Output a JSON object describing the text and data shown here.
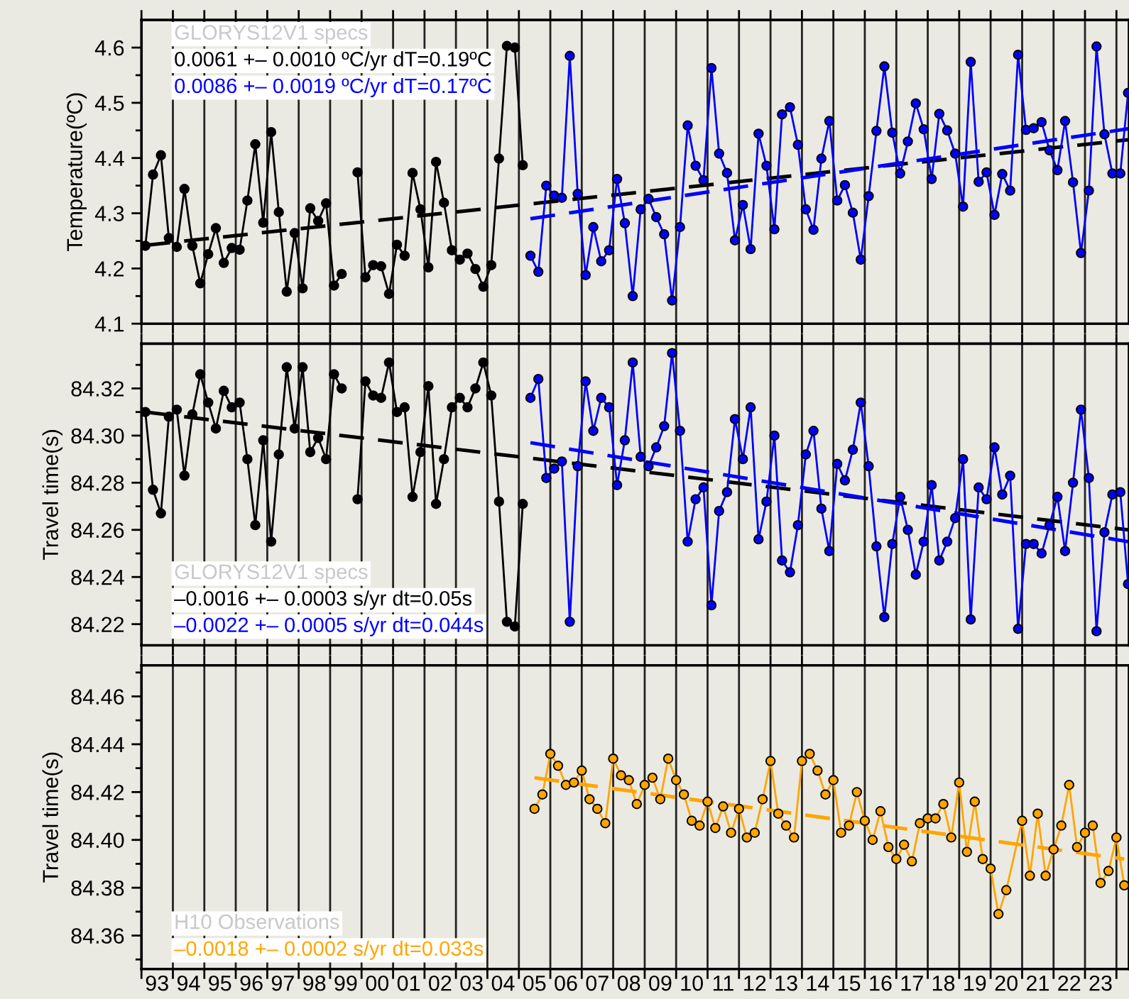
{
  "chart_data": [
    {
      "type": "line",
      "ylabel": "Temperature(ºC)",
      "marker": "circle",
      "line_style": "solid",
      "grid": "x",
      "tick_labels": "y",
      "annotations": [
        "GLORYS12V1 specs",
        "0.0061 +– 0.0010 ºC/yr dT=0.19ºC",
        "0.0086 +– 0.0019 ºC/yr dT=0.17ºC"
      ],
      "xlim": [
        "1993",
        "2024-05-26"
      ],
      "ylim": [
        4.1,
        4.65
      ],
      "xticks": [
        {
          "value": "1993",
          "label": null
        },
        {
          "value": "1994",
          "label": null
        },
        {
          "value": "1995",
          "label": null
        },
        {
          "value": "1996",
          "label": null
        },
        {
          "value": "1997",
          "label": null
        },
        {
          "value": "1998",
          "label": null
        },
        {
          "value": "1999",
          "label": null
        },
        {
          "value": "2000",
          "label": null
        },
        {
          "value": "2001",
          "label": null
        },
        {
          "value": "2002",
          "label": null
        },
        {
          "value": "2003",
          "label": null
        },
        {
          "value": "2004",
          "label": null
        },
        {
          "value": "2005",
          "label": null
        },
        {
          "value": "2006",
          "label": null
        },
        {
          "value": "2007",
          "label": null
        },
        {
          "value": "2008",
          "label": null
        },
        {
          "value": "2009",
          "label": null
        },
        {
          "value": "2010",
          "label": null
        },
        {
          "value": "2011",
          "label": null
        },
        {
          "value": "2012",
          "label": null
        },
        {
          "value": "2013",
          "label": null
        },
        {
          "value": "2014",
          "label": null
        },
        {
          "value": "2015",
          "label": null
        },
        {
          "value": "2016",
          "label": null
        },
        {
          "value": "2017",
          "label": null
        },
        {
          "value": "2018",
          "label": null
        },
        {
          "value": "2019",
          "label": null
        },
        {
          "value": "2020",
          "label": null
        },
        {
          "value": "2021",
          "label": null
        },
        {
          "value": "2022",
          "label": null
        },
        {
          "value": "2023",
          "label": null
        },
        {
          "value": "2024",
          "label": null
        }
      ],
      "yticks": [
        4.1,
        4.2,
        4.3,
        4.4,
        4.5,
        4.6,
        {
          "value": 4.15,
          "label": null
        },
        {
          "value": 4.25,
          "label": null
        },
        {
          "value": 4.35,
          "label": null
        },
        {
          "value": 4.45,
          "label": null
        },
        {
          "value": 4.55,
          "label": null
        }
      ],
      "series": [
        {
          "color": "#000000",
          "x": [
            "1993-02-15",
            "1993-05-15",
            "1993-08-15",
            "1993-11-15",
            "1994-02-15",
            "1994-05-15",
            "1994-08-15",
            "1994-11-15",
            "1995-02-15",
            "1995-05-15",
            "1995-08-15",
            "1995-11-15",
            "1996-02-15",
            "1996-05-15",
            "1996-08-15",
            "1996-11-15",
            "1997-02-15",
            "1997-05-15",
            "1997-08-15",
            "1997-11-15",
            "1998-02-15",
            "1998-05-15",
            "1998-08-15",
            "1998-11-15",
            "1999-02-15",
            "1999-05-15",
            "1999-08-15",
            "1999-11-15",
            "2000-02-15",
            "2000-05-15",
            "2000-08-15",
            "2000-11-15",
            "2001-02-15",
            "2001-05-15",
            "2001-08-15",
            "2001-11-15",
            "2002-02-15",
            "2002-05-15",
            "2002-08-15",
            "2002-11-15",
            "2003-02-15",
            "2003-05-15",
            "2003-08-15",
            "2003-11-15",
            "2004-02-15",
            "2004-05-15",
            "2004-08-15",
            "2004-11-15",
            "2005-02-15"
          ],
          "values": [
            4.241,
            4.37,
            4.405,
            4.255,
            4.239,
            4.344,
            4.241,
            4.173,
            4.226,
            4.273,
            4.21,
            4.237,
            4.234,
            4.323,
            4.425,
            4.283,
            4.447,
            4.302,
            4.158,
            4.264,
            4.164,
            4.309,
            4.286,
            4.318,
            4.169,
            4.19,
            null,
            4.374,
            4.184,
            4.206,
            4.204,
            4.154,
            4.243,
            4.223,
            4.373,
            4.307,
            4.202,
            4.393,
            4.319,
            4.233,
            4.216,
            4.227,
            4.199,
            4.167,
            4.206,
            4.399,
            4.603,
            4.6,
            4.387
          ]
        },
        {
          "color": "#0000ff",
          "x": [
            "2005-05-15",
            "2005-08-15",
            "2005-11-15",
            "2006-02-15",
            "2006-05-15",
            "2006-08-15",
            "2006-11-15",
            "2007-02-15",
            "2007-05-15",
            "2007-08-15",
            "2007-11-15",
            "2008-02-15",
            "2008-05-15",
            "2008-08-15",
            "2008-11-15",
            "2009-02-15",
            "2009-05-15",
            "2009-08-15",
            "2009-11-15",
            "2010-02-15",
            "2010-05-15",
            "2010-08-15",
            "2010-11-15",
            "2011-02-15",
            "2011-05-15",
            "2011-08-15",
            "2011-11-15",
            "2012-02-15",
            "2012-05-15",
            "2012-08-15",
            "2012-11-15",
            "2013-02-15",
            "2013-05-15",
            "2013-08-15",
            "2013-11-15",
            "2014-02-15",
            "2014-05-15",
            "2014-08-15",
            "2014-11-15",
            "2015-02-15",
            "2015-05-15",
            "2015-08-15",
            "2015-11-15",
            "2016-02-15",
            "2016-05-15",
            "2016-08-15",
            "2016-11-15",
            "2017-02-15",
            "2017-05-15",
            "2017-08-15",
            "2017-11-15",
            "2018-02-15",
            "2018-05-15",
            "2018-08-15",
            "2018-11-15",
            "2019-02-15",
            "2019-05-15",
            "2019-08-15",
            "2019-11-15",
            "2020-02-15",
            "2020-05-15",
            "2020-08-15",
            "2020-11-15",
            "2021-02-15",
            "2021-05-15",
            "2021-08-15",
            "2021-11-15",
            "2022-02-15",
            "2022-05-15",
            "2022-08-15",
            "2022-11-15",
            "2023-02-15",
            "2023-05-15",
            "2023-08-15",
            "2023-11-15",
            "2024-02-15",
            "2024-05-15"
          ],
          "values": [
            4.223,
            4.194,
            4.35,
            4.332,
            4.328,
            4.585,
            4.335,
            4.188,
            4.275,
            4.213,
            4.233,
            4.362,
            4.282,
            4.15,
            4.307,
            4.326,
            4.293,
            4.262,
            4.142,
            4.275,
            4.459,
            4.386,
            4.36,
            4.563,
            4.408,
            4.373,
            4.251,
            4.315,
            4.235,
            4.444,
            4.386,
            4.271,
            4.479,
            4.492,
            4.424,
            4.307,
            4.27,
            4.399,
            4.467,
            4.323,
            4.351,
            4.301,
            4.216,
            4.331,
            4.449,
            4.566,
            4.446,
            4.372,
            4.43,
            4.499,
            4.452,
            4.362,
            4.48,
            4.45,
            4.408,
            4.312,
            4.574,
            4.357,
            4.374,
            4.297,
            4.371,
            4.341,
            4.587,
            4.451,
            4.454,
            4.465,
            4.414,
            4.378,
            4.467,
            4.356,
            4.228,
            4.341,
            4.602,
            4.443,
            4.372,
            4.372,
            4.518
          ]
        },
        {
          "color": "#000000",
          "marker": "none",
          "line_style": "dashed",
          "x": [
            "1993-02-15",
            "2024-05-15"
          ],
          "values": [
            4.242,
            4.433
          ]
        },
        {
          "color": "#0000ff",
          "marker": "none",
          "line_style": "dashed",
          "x": [
            "2005-05-15",
            "2024-05-15"
          ],
          "values": [
            4.29,
            4.453
          ]
        }
      ]
    },
    {
      "type": "line",
      "ylabel": "Travel time(s)",
      "marker": "circle",
      "line_style": "solid",
      "grid": "x",
      "tick_labels": "y",
      "annotations": [
        "GLORYS12V1 specs",
        "–0.0016 +– 0.0003 s/yr dt=0.05s",
        "–0.0022 +– 0.0005 s/yr dt=0.044s"
      ],
      "xlim": [
        "1993",
        "2024-05-26"
      ],
      "ylim": [
        84.211,
        84.339
      ],
      "xticks": [
        {
          "value": "1993",
          "label": null
        },
        {
          "value": "1994",
          "label": null
        },
        {
          "value": "1995",
          "label": null
        },
        {
          "value": "1996",
          "label": null
        },
        {
          "value": "1997",
          "label": null
        },
        {
          "value": "1998",
          "label": null
        },
        {
          "value": "1999",
          "label": null
        },
        {
          "value": "2000",
          "label": null
        },
        {
          "value": "2001",
          "label": null
        },
        {
          "value": "2002",
          "label": null
        },
        {
          "value": "2003",
          "label": null
        },
        {
          "value": "2004",
          "label": null
        },
        {
          "value": "2005",
          "label": null
        },
        {
          "value": "2006",
          "label": null
        },
        {
          "value": "2007",
          "label": null
        },
        {
          "value": "2008",
          "label": null
        },
        {
          "value": "2009",
          "label": null
        },
        {
          "value": "2010",
          "label": null
        },
        {
          "value": "2011",
          "label": null
        },
        {
          "value": "2012",
          "label": null
        },
        {
          "value": "2013",
          "label": null
        },
        {
          "value": "2014",
          "label": null
        },
        {
          "value": "2015",
          "label": null
        },
        {
          "value": "2016",
          "label": null
        },
        {
          "value": "2017",
          "label": null
        },
        {
          "value": "2018",
          "label": null
        },
        {
          "value": "2019",
          "label": null
        },
        {
          "value": "2020",
          "label": null
        },
        {
          "value": "2021",
          "label": null
        },
        {
          "value": "2022",
          "label": null
        },
        {
          "value": "2023",
          "label": null
        },
        {
          "value": "2024",
          "label": null
        }
      ],
      "yticks": [
        84.22,
        84.24,
        84.26,
        84.28,
        {
          "value": 84.3,
          "label": "84.30"
        },
        84.32,
        {
          "value": 84.23,
          "label": null
        },
        {
          "value": 84.25,
          "label": null
        },
        {
          "value": 84.27,
          "label": null
        },
        {
          "value": 84.29,
          "label": null
        },
        {
          "value": 84.31,
          "label": null
        },
        {
          "value": 84.33,
          "label": null
        }
      ],
      "series": [
        {
          "color": "#000000",
          "x": [
            "1993-02-15",
            "1993-05-15",
            "1993-08-15",
            "1993-11-15",
            "1994-02-15",
            "1994-05-15",
            "1994-08-15",
            "1994-11-15",
            "1995-02-15",
            "1995-05-15",
            "1995-08-15",
            "1995-11-15",
            "1996-02-15",
            "1996-05-15",
            "1996-08-15",
            "1996-11-15",
            "1997-02-15",
            "1997-05-15",
            "1997-08-15",
            "1997-11-15",
            "1998-02-15",
            "1998-05-15",
            "1998-08-15",
            "1998-11-15",
            "1999-02-15",
            "1999-05-15",
            "1999-08-15",
            "1999-11-15",
            "2000-02-15",
            "2000-05-15",
            "2000-08-15",
            "2000-11-15",
            "2001-02-15",
            "2001-05-15",
            "2001-08-15",
            "2001-11-15",
            "2002-02-15",
            "2002-05-15",
            "2002-08-15",
            "2002-11-15",
            "2003-02-15",
            "2003-05-15",
            "2003-08-15",
            "2003-11-15",
            "2004-02-15",
            "2004-05-15",
            "2004-08-15",
            "2004-11-15",
            "2005-02-15"
          ],
          "values": [
            84.31,
            84.277,
            84.267,
            84.308,
            84.311,
            84.283,
            84.309,
            84.326,
            84.314,
            84.303,
            84.319,
            84.312,
            84.314,
            84.29,
            84.262,
            84.298,
            84.255,
            84.292,
            84.329,
            84.303,
            84.329,
            84.293,
            84.299,
            84.29,
            84.326,
            84.32,
            null,
            84.273,
            84.323,
            84.317,
            84.316,
            84.331,
            84.31,
            84.312,
            84.274,
            84.293,
            84.321,
            84.271,
            84.29,
            84.312,
            84.316,
            84.312,
            84.32,
            84.331,
            84.317,
            84.272,
            84.221,
            84.219,
            84.271
          ]
        },
        {
          "color": "#0000ff",
          "x": [
            "2005-05-15",
            "2005-08-15",
            "2005-11-15",
            "2006-02-15",
            "2006-05-15",
            "2006-08-15",
            "2006-11-15",
            "2007-02-15",
            "2007-05-15",
            "2007-08-15",
            "2007-11-15",
            "2008-02-15",
            "2008-05-15",
            "2008-08-15",
            "2008-11-15",
            "2009-02-15",
            "2009-05-15",
            "2009-08-15",
            "2009-11-15",
            "2010-02-15",
            "2010-05-15",
            "2010-08-15",
            "2010-11-15",
            "2011-02-15",
            "2011-05-15",
            "2011-08-15",
            "2011-11-15",
            "2012-02-15",
            "2012-05-15",
            "2012-08-15",
            "2012-11-15",
            "2013-02-15",
            "2013-05-15",
            "2013-08-15",
            "2013-11-15",
            "2014-02-15",
            "2014-05-15",
            "2014-08-15",
            "2014-11-15",
            "2015-02-15",
            "2015-05-15",
            "2015-08-15",
            "2015-11-15",
            "2016-02-15",
            "2016-05-15",
            "2016-08-15",
            "2016-11-15",
            "2017-02-15",
            "2017-05-15",
            "2017-08-15",
            "2017-11-15",
            "2018-02-15",
            "2018-05-15",
            "2018-08-15",
            "2018-11-15",
            "2019-02-15",
            "2019-05-15",
            "2019-08-15",
            "2019-11-15",
            "2020-02-15",
            "2020-05-15",
            "2020-08-15",
            "2020-11-15",
            "2021-02-15",
            "2021-05-15",
            "2021-08-15",
            "2021-11-15",
            "2022-02-15",
            "2022-05-15",
            "2022-08-15",
            "2022-11-15",
            "2023-02-15",
            "2023-05-15",
            "2023-08-15",
            "2023-11-15",
            "2024-02-15",
            "2024-05-15"
          ],
          "values": [
            84.316,
            84.324,
            84.282,
            84.286,
            84.289,
            84.221,
            84.287,
            84.323,
            84.302,
            84.316,
            84.312,
            84.279,
            84.298,
            84.331,
            84.291,
            84.287,
            84.295,
            84.304,
            84.335,
            84.302,
            84.255,
            84.273,
            84.278,
            84.228,
            84.268,
            84.276,
            84.307,
            84.29,
            84.312,
            84.256,
            84.272,
            84.3,
            84.247,
            84.242,
            84.262,
            84.292,
            84.302,
            84.269,
            84.251,
            84.288,
            84.281,
            84.294,
            84.314,
            84.287,
            84.253,
            84.223,
            84.254,
            84.274,
            84.26,
            84.241,
            84.255,
            84.279,
            84.247,
            84.255,
            84.265,
            84.29,
            84.222,
            84.278,
            84.273,
            84.295,
            84.275,
            84.283,
            84.218,
            84.254,
            84.254,
            84.25,
            84.262,
            84.274,
            84.251,
            84.28,
            84.311,
            84.282,
            84.217,
            84.259,
            84.275,
            84.276,
            84.237
          ]
        },
        {
          "color": "#000000",
          "marker": "none",
          "line_style": "dashed",
          "x": [
            "1993-02-15",
            "2024-05-15"
          ],
          "values": [
            84.31,
            84.26
          ]
        },
        {
          "color": "#0000ff",
          "marker": "none",
          "line_style": "dashed",
          "x": [
            "2005-05-15",
            "2024-05-15"
          ],
          "values": [
            84.297,
            84.255
          ]
        }
      ]
    },
    {
      "type": "line",
      "ylabel": "Travel time(s)",
      "marker": "circle",
      "line_style": "solid",
      "grid": "x",
      "annotations": [
        "H10 Observations",
        "–0.0018 +– 0.0002 s/yr dt=0.033s"
      ],
      "xlim": [
        "1993",
        "2024-05-26"
      ],
      "ylim": [
        84.346,
        84.473
      ],
      "xticks": [
        {
          "value": "1993",
          "label": null
        },
        {
          "value": "1994",
          "label": null
        },
        {
          "value": "1995",
          "label": null
        },
        {
          "value": "1996",
          "label": null
        },
        {
          "value": "1997",
          "label": null
        },
        {
          "value": "1998",
          "label": null
        },
        {
          "value": "1999",
          "label": null
        },
        {
          "value": "2000",
          "label": null
        },
        {
          "value": "2001",
          "label": null
        },
        {
          "value": "2002",
          "label": null
        },
        {
          "value": "2003",
          "label": null
        },
        {
          "value": "2004",
          "label": null
        },
        {
          "value": "2005",
          "label": null
        },
        {
          "value": "2006",
          "label": null
        },
        {
          "value": "2007",
          "label": null
        },
        {
          "value": "2008",
          "label": null
        },
        {
          "value": "2009",
          "label": null
        },
        {
          "value": "2010",
          "label": null
        },
        {
          "value": "2011",
          "label": null
        },
        {
          "value": "2012",
          "label": null
        },
        {
          "value": "2013",
          "label": null
        },
        {
          "value": "2014",
          "label": null
        },
        {
          "value": "2015",
          "label": null
        },
        {
          "value": "2016",
          "label": null
        },
        {
          "value": "2017",
          "label": null
        },
        {
          "value": "2018",
          "label": null
        },
        {
          "value": "2019",
          "label": null
        },
        {
          "value": "2020",
          "label": null
        },
        {
          "value": "2021",
          "label": null
        },
        {
          "value": "2022",
          "label": null
        },
        {
          "value": "2023",
          "label": null
        },
        {
          "value": "2024",
          "label": null
        },
        {
          "value": "1993-07-01",
          "label": "93"
        },
        {
          "value": "1994-07-01",
          "label": "94"
        },
        {
          "value": "1995-07-01",
          "label": "95"
        },
        {
          "value": "1996-07-01",
          "label": "96"
        },
        {
          "value": "1997-07-01",
          "label": "97"
        },
        {
          "value": "1998-07-01",
          "label": "98"
        },
        {
          "value": "1999-07-01",
          "label": "99"
        },
        {
          "value": "2000-07-01",
          "label": "00"
        },
        {
          "value": "2001-07-01",
          "label": "01"
        },
        {
          "value": "2002-07-01",
          "label": "02"
        },
        {
          "value": "2003-07-01",
          "label": "03"
        },
        {
          "value": "2004-07-01",
          "label": "04"
        },
        {
          "value": "2005-07-01",
          "label": "05"
        },
        {
          "value": "2006-07-01",
          "label": "06"
        },
        {
          "value": "2007-07-01",
          "label": "07"
        },
        {
          "value": "2008-07-01",
          "label": "08"
        },
        {
          "value": "2009-07-01",
          "label": "09"
        },
        {
          "value": "2010-07-01",
          "label": "10"
        },
        {
          "value": "2011-07-01",
          "label": "11"
        },
        {
          "value": "2012-07-01",
          "label": "12"
        },
        {
          "value": "2013-07-01",
          "label": "13"
        },
        {
          "value": "2014-07-01",
          "label": "14"
        },
        {
          "value": "2015-07-01",
          "label": "15"
        },
        {
          "value": "2016-07-01",
          "label": "16"
        },
        {
          "value": "2017-07-01",
          "label": "17"
        },
        {
          "value": "2018-07-01",
          "label": "18"
        },
        {
          "value": "2019-07-01",
          "label": "19"
        },
        {
          "value": "2020-07-01",
          "label": "20"
        },
        {
          "value": "2021-07-01",
          "label": "21"
        },
        {
          "value": "2022-07-01",
          "label": "22"
        },
        {
          "value": "2023-07-01",
          "label": "23"
        }
      ],
      "yticks": [
        84.36,
        84.38,
        {
          "value": 84.4,
          "label": "84.40"
        },
        84.42,
        84.44,
        84.46,
        {
          "value": 84.35,
          "label": null
        },
        {
          "value": 84.37,
          "label": null
        },
        {
          "value": 84.39,
          "label": null
        },
        {
          "value": 84.41,
          "label": null
        },
        {
          "value": 84.43,
          "label": null
        },
        {
          "value": 84.45,
          "label": null
        },
        {
          "value": 84.47,
          "label": null
        }
      ],
      "series": [
        {
          "color": "#ffa500",
          "x": [
            "2005-07-01",
            "2005-10-01",
            "2006-01-01",
            "2006-04-01",
            "2006-07-01",
            "2006-10-01",
            "2007-01-01",
            "2007-04-01",
            "2007-07-01",
            "2007-10-01",
            "2008-01-01",
            "2008-04-01",
            "2008-07-01",
            "2008-10-01",
            "2009-01-01",
            "2009-04-01",
            "2009-07-01",
            "2009-10-01",
            "2010-01-01",
            "2010-04-01",
            "2010-07-01",
            "2010-10-01",
            "2011-01-01",
            "2011-04-01",
            "2011-07-01",
            "2011-10-01",
            "2012-01-01",
            "2012-04-01",
            "2012-07-01",
            "2012-10-01",
            "2013-01-01",
            "2013-04-01",
            "2013-07-01",
            "2013-10-01",
            "2014-01-01",
            "2014-04-01",
            "2014-07-01",
            "2014-10-01",
            "2015-01-01",
            "2015-04-01",
            "2015-07-01",
            "2015-10-01",
            "2016-01-01",
            "2016-04-01",
            "2016-07-01",
            "2016-10-01",
            "2017-01-01",
            "2017-04-01",
            "2017-07-01",
            "2017-10-01",
            "2018-01-01",
            "2018-04-01",
            "2018-07-01",
            "2018-10-01",
            "2019-01-01",
            "2019-04-01",
            "2019-07-01",
            "2019-10-01",
            "2020-01-01",
            "2020-04-01",
            "2020-07-01",
            "2021-01-01",
            "2021-04-01",
            "2021-07-01",
            "2021-10-01",
            "2022-01-01",
            "2022-04-01",
            "2022-07-01",
            "2022-10-01",
            "2023-01-01",
            "2023-04-01",
            "2023-07-01",
            "2023-10-01",
            "2024-01-01",
            "2024-04-01"
          ],
          "values": [
            84.413,
            84.419,
            84.436,
            84.431,
            84.423,
            84.424,
            84.429,
            84.417,
            84.413,
            84.407,
            84.434,
            84.427,
            84.425,
            84.415,
            84.423,
            84.426,
            84.417,
            84.434,
            84.425,
            84.419,
            84.408,
            84.406,
            84.416,
            84.405,
            84.414,
            84.403,
            84.413,
            84.401,
            84.403,
            84.417,
            84.433,
            84.411,
            84.406,
            84.401,
            84.433,
            84.436,
            84.429,
            84.419,
            84.425,
            84.403,
            84.406,
            84.42,
            84.408,
            84.4,
            84.412,
            84.397,
            84.392,
            84.398,
            84.391,
            84.407,
            84.409,
            84.409,
            84.415,
            84.401,
            84.424,
            84.395,
            84.416,
            84.392,
            84.388,
            84.369,
            84.379,
            84.408,
            84.385,
            84.411,
            84.385,
            84.396,
            84.406,
            84.423,
            84.397,
            84.403,
            84.406,
            84.382,
            84.387,
            84.401,
            84.381
          ]
        },
        {
          "color": "#ffa500",
          "marker": "none",
          "line_style": "dashed",
          "x": [
            "2005-07-01",
            "2024-04-01"
          ],
          "values": [
            84.426,
            84.392
          ]
        }
      ]
    }
  ]
}
